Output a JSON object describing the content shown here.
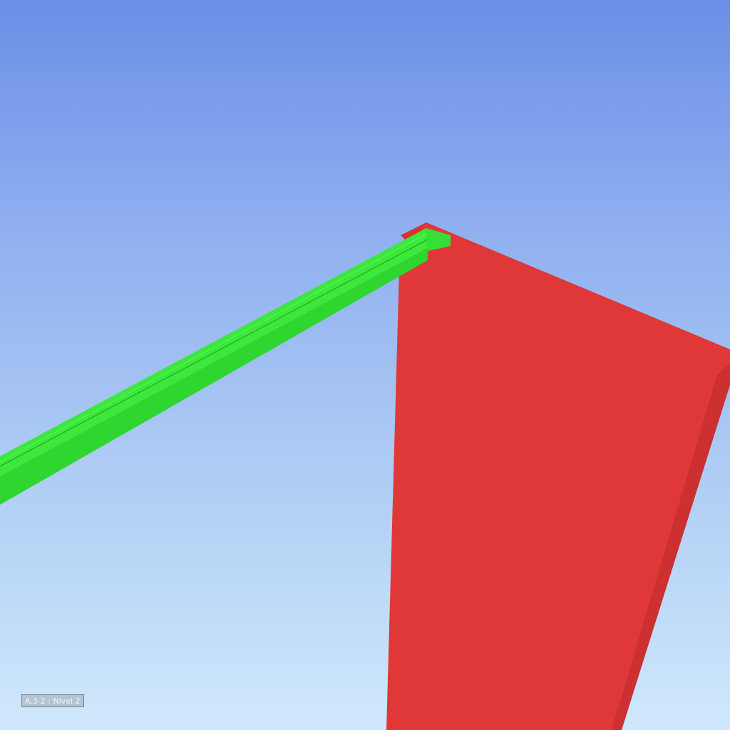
{
  "viewport": {
    "level_label": "A.3-2 : Nivel 2"
  },
  "colors": {
    "sky_top": "#6b8ee6",
    "sky_bottom": "#cfe8fc",
    "wall_face": "#e03838",
    "wall_side": "#cf3232",
    "wall_top": "#d63434",
    "beam_top": "#3be83b",
    "beam_side": "#2fd62f",
    "beam_edge": "#1f9e1f"
  },
  "scene": {
    "objects": [
      {
        "name": "red-wall",
        "kind": "wall"
      },
      {
        "name": "green-beam",
        "kind": "beam"
      }
    ]
  }
}
